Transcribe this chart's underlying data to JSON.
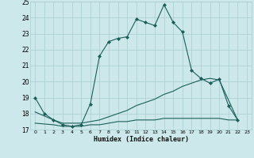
{
  "xlabel": "Humidex (Indice chaleur)",
  "background_color": "#cce8ea",
  "grid_color": "#aacdd0",
  "line_color": "#1a5f5a",
  "xlim": [
    -0.5,
    23.5
  ],
  "ylim": [
    17,
    25
  ],
  "yticks": [
    17,
    18,
    19,
    20,
    21,
    22,
    23,
    24,
    25
  ],
  "xticks": [
    0,
    1,
    2,
    3,
    4,
    5,
    6,
    7,
    8,
    9,
    10,
    11,
    12,
    13,
    14,
    15,
    16,
    17,
    18,
    19,
    20,
    21,
    22,
    23
  ],
  "series1_x": [
    0,
    1,
    2,
    3,
    4,
    5,
    6,
    7,
    8,
    9,
    10,
    11,
    12,
    13,
    14,
    15,
    16,
    17,
    18,
    19,
    20,
    21,
    22
  ],
  "series1_y": [
    19,
    18,
    17.6,
    17.3,
    17.2,
    17.3,
    18.6,
    21.6,
    22.5,
    22.7,
    22.8,
    23.9,
    23.7,
    23.5,
    24.8,
    23.7,
    23.1,
    20.7,
    20.2,
    19.9,
    20.15,
    18.5,
    17.6
  ],
  "series2_x": [
    0,
    2,
    3,
    4,
    5,
    6,
    7,
    8,
    9,
    10,
    11,
    12,
    13,
    14,
    15,
    16,
    17,
    18,
    19,
    20,
    22
  ],
  "series2_y": [
    18.1,
    17.6,
    17.4,
    17.4,
    17.4,
    17.5,
    17.6,
    17.8,
    18.0,
    18.2,
    18.5,
    18.7,
    18.9,
    19.2,
    19.4,
    19.7,
    19.9,
    20.1,
    20.2,
    20.1,
    17.6
  ],
  "series3_x": [
    0,
    2,
    3,
    4,
    5,
    6,
    7,
    8,
    9,
    10,
    11,
    12,
    13,
    14,
    15,
    16,
    17,
    18,
    19,
    20,
    21,
    22
  ],
  "series3_y": [
    17.4,
    17.3,
    17.2,
    17.2,
    17.2,
    17.3,
    17.3,
    17.4,
    17.5,
    17.5,
    17.6,
    17.6,
    17.6,
    17.7,
    17.7,
    17.7,
    17.7,
    17.7,
    17.7,
    17.7,
    17.6,
    17.6
  ]
}
